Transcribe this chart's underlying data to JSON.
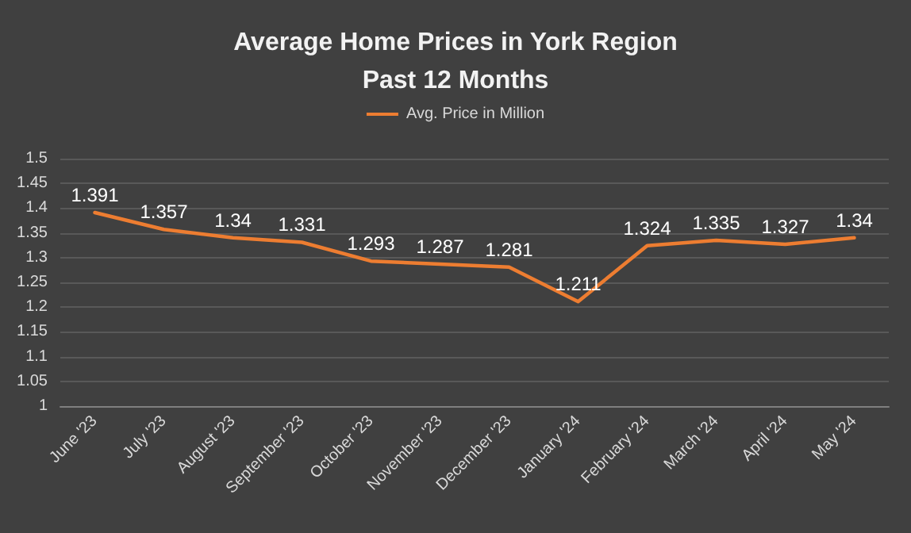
{
  "chart_data": {
    "type": "line",
    "title": "Average Home Prices in York Region\nPast 12 Months",
    "categories": [
      "June '23",
      "July '23",
      "August '23",
      "September '23",
      "October '23",
      "November '23",
      "December '23",
      "January '24",
      "February '24",
      "March '24",
      "April '24",
      "May '24"
    ],
    "series": [
      {
        "name": "Avg. Price in Million",
        "color": "#ed7d31",
        "values": [
          1.391,
          1.357,
          1.34,
          1.331,
          1.293,
          1.287,
          1.281,
          1.211,
          1.324,
          1.335,
          1.327,
          1.34
        ]
      }
    ],
    "ylim": [
      1,
      1.5
    ],
    "yticks": [
      1,
      1.05,
      1.1,
      1.15,
      1.2,
      1.25,
      1.3,
      1.35,
      1.4,
      1.45,
      1.5
    ],
    "grid": "y",
    "legend": "top",
    "marker": "none",
    "data_labels": true,
    "line_style": "solid"
  }
}
